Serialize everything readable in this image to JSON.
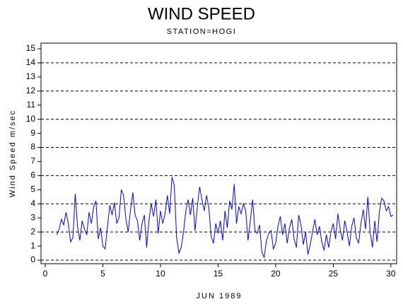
{
  "chart_data": {
    "type": "line",
    "title": "WIND SPEED",
    "subtitle": "STATION=HOGI",
    "x_label": "JUN 1989",
    "y_label": "Wind Speed m/sec",
    "color": "#0000ff",
    "xlim": [
      -0.37,
      30.5
    ],
    "xticks": [
      0,
      5,
      10,
      15,
      20,
      25,
      30
    ],
    "ylim": [
      -0.25,
      15.4
    ],
    "yticks": [
      0,
      1,
      2,
      3,
      4,
      5,
      6,
      7,
      8,
      9,
      10,
      11,
      12,
      13,
      14,
      15
    ],
    "grid_values": [
      0,
      2,
      4,
      6,
      8,
      10,
      12,
      14
    ],
    "x": [
      1,
      1.2,
      1.4,
      1.6,
      1.8,
      2,
      2.2,
      2.4,
      2.6,
      2.8,
      3,
      3.2,
      3.4,
      3.6,
      3.8,
      4,
      4.2,
      4.4,
      4.6,
      4.8,
      5,
      5.2,
      5.4,
      5.6,
      5.8,
      6,
      6.2,
      6.4,
      6.6,
      6.8,
      7,
      7.2,
      7.4,
      7.6,
      7.8,
      8,
      8.2,
      8.4,
      8.6,
      8.8,
      9,
      9.2,
      9.4,
      9.6,
      9.8,
      10,
      10.2,
      10.4,
      10.6,
      10.8,
      11,
      11.2,
      11.4,
      11.6,
      11.8,
      12,
      12.2,
      12.4,
      12.6,
      12.8,
      13,
      13.2,
      13.4,
      13.6,
      13.8,
      14,
      14.2,
      14.4,
      14.6,
      14.8,
      15,
      15.2,
      15.4,
      15.6,
      15.8,
      16,
      16.2,
      16.4,
      16.6,
      16.8,
      17,
      17.2,
      17.4,
      17.6,
      17.8,
      18,
      18.2,
      18.4,
      18.6,
      18.8,
      19,
      19.2,
      19.4,
      19.6,
      19.8,
      20,
      20.2,
      20.4,
      20.6,
      20.8,
      21,
      21.2,
      21.4,
      21.6,
      21.8,
      22,
      22.2,
      22.4,
      22.6,
      22.8,
      23,
      23.2,
      23.4,
      23.6,
      23.8,
      24,
      24.2,
      24.4,
      24.6,
      24.8,
      25,
      25.2,
      25.4,
      25.6,
      25.8,
      26,
      26.2,
      26.4,
      26.6,
      26.8,
      27,
      27.2,
      27.4,
      27.6,
      27.8,
      28,
      28.2,
      28.4,
      28.6,
      28.8,
      29,
      29.2,
      29.4,
      29.6,
      29.8,
      30,
      30.2
    ],
    "values": [
      1.8,
      2.2,
      2.9,
      2.5,
      3.4,
      2.6,
      1.3,
      1.6,
      4.7,
      2.4,
      1.4,
      2.8,
      2.2,
      1.8,
      3.4,
      2.6,
      3.8,
      4.2,
      1.5,
      2.3,
      1.0,
      0.8,
      2.4,
      3.9,
      3.2,
      4.1,
      2.6,
      3.0,
      5.0,
      4.6,
      2.9,
      2.0,
      3.6,
      4.8,
      3.2,
      2.8,
      1.4,
      2.6,
      3.2,
      0.9,
      2.8,
      4.0,
      3.1,
      4.3,
      1.9,
      3.5,
      2.6,
      3.3,
      4.6,
      3.3,
      5.9,
      5.3,
      1.6,
      0.5,
      0.9,
      2.0,
      3.5,
      4.3,
      3.2,
      4.4,
      2.1,
      3.8,
      5.2,
      4.3,
      3.5,
      4.6,
      3.7,
      1.7,
      1.2,
      2.6,
      1.9,
      2.8,
      1.4,
      3.5,
      2.3,
      4.2,
      3.6,
      5.4,
      2.6,
      3.8,
      3.3,
      4.0,
      3.5,
      1.4,
      2.8,
      4.3,
      2.1,
      1.9,
      2.5,
      0.6,
      0.2,
      1.4,
      1.9,
      2.1,
      0.8,
      1.2,
      2.4,
      3.1,
      1.8,
      2.6,
      1.2,
      2.3,
      2.9,
      1.5,
      0.9,
      3.2,
      2.5,
      1.1,
      2.0,
      0.4,
      1.1,
      2.0,
      2.9,
      1.8,
      2.4,
      1.3,
      0.7,
      1.8,
      0.9,
      2.0,
      2.6,
      1.5,
      3.3,
      2.2,
      1.4,
      2.8,
      2.0,
      1.0,
      2.4,
      3.0,
      1.6,
      1.2,
      2.6,
      3.6,
      2.2,
      4.5,
      2.0,
      0.9,
      2.8,
      1.3,
      3.4,
      4.4,
      4.2,
      3.5,
      3.8,
      3.1,
      3.2
    ]
  }
}
